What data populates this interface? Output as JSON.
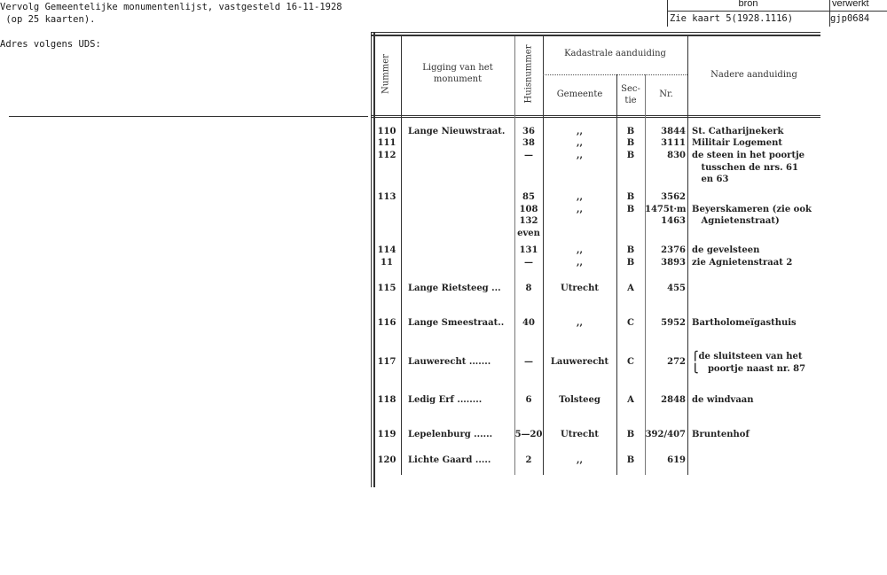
{
  "header": {
    "line1": "Vervolg Gemeentelijke monumentenlijst, vastgesteld 16-11-1928",
    "line2": " (op 25 kaarten).",
    "address_label": "Adres volgens UDS:"
  },
  "source_box": {
    "bron_label": "bron",
    "verwerkt_label": "verwerkt",
    "bron_value": "Zie kaart 5(1928.1116)",
    "verwerkt_value": "gjp0684"
  },
  "table": {
    "headers": {
      "nummer": "Nummer",
      "ligging": "Ligging van het\nmonument",
      "huisnummer": "Huisnummer",
      "kadastrale": "Kadastrale aanduiding",
      "gemeente": "Gemeente",
      "sectie": "Sec-\ntie",
      "nr": "Nr.",
      "nadere": "Nadere aanduiding"
    },
    "rows": [
      {
        "nummer": "110",
        "ligging": "Lange Nieuwstraat.",
        "huis": "36",
        "gemeente": ",,",
        "sectie": "B",
        "nr": "3844",
        "nadere": "St. Catharijnekerk"
      },
      {
        "nummer": "111",
        "ligging": "",
        "huis": "38",
        "gemeente": ",,",
        "sectie": "B",
        "nr": "3111",
        "nadere": "Militair Logement"
      },
      {
        "nummer": "112",
        "ligging": "",
        "huis": "—",
        "gemeente": ",,",
        "sectie": "B",
        "nr": "830",
        "nadere": "de steen in het poortje\n   tusschen de nrs. 61\n   en 63"
      },
      {
        "nummer": "113",
        "ligging": "",
        "huis": "85\n108\n132\neven",
        "gemeente": ",,\n,,",
        "sectie": "B\nB",
        "nr": "3562\n1475t·m\n1463",
        "nadere": "\nBeyerskameren (zie ook\n   Agnietenstraat)"
      },
      {
        "nummer": "114",
        "ligging": "",
        "huis": "131",
        "gemeente": ",,",
        "sectie": "B",
        "nr": "2376",
        "nadere": "de gevelsteen"
      },
      {
        "nummer": "11",
        "ligging": "",
        "huis": "—",
        "gemeente": ",,",
        "sectie": "B",
        "nr": "3893",
        "nadere": "zie Agnietenstraat 2"
      },
      {
        "nummer": "115",
        "ligging": "Lange Rietsteeg ...",
        "huis": "8",
        "gemeente": "Utrecht",
        "sectie": "A",
        "nr": "455",
        "nadere": ""
      },
      {
        "nummer": "116",
        "ligging": "Lange Smeestraat..",
        "huis": "40",
        "gemeente": ",,",
        "sectie": "C",
        "nr": "5952",
        "nadere": "Bartholomeïgasthuis"
      },
      {
        "nummer": "117",
        "ligging": "Lauwerecht .......",
        "huis": "—",
        "gemeente": "Lauwerecht",
        "sectie": "C",
        "nr": "272",
        "nadere": "⎧de sluitsteen van het\n⎩   poortje naast nr. 87"
      },
      {
        "nummer": "118",
        "ligging": "Ledig Erf ........",
        "huis": "6",
        "gemeente": "Tolsteeg",
        "sectie": "A",
        "nr": "2848",
        "nadere": "de windvaan"
      },
      {
        "nummer": "119",
        "ligging": "Lepelenburg ......",
        "huis": "5—20",
        "gemeente": "Utrecht",
        "sectie": "B",
        "nr": "392/407",
        "nadere": "Bruntenhof"
      },
      {
        "nummer": "120",
        "ligging": "Lichte Gaard .....",
        "huis": "2",
        "gemeente": ",,",
        "sectie": "B",
        "nr": "619",
        "nadere": ""
      }
    ]
  }
}
